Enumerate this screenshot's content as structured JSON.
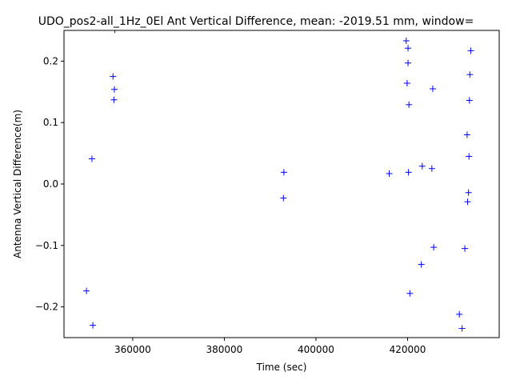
{
  "chart_data": {
    "type": "scatter",
    "title": "UDO_pos2-all_1Hz_0El Ant Vertical Difference, mean: -2019.51 mm, window=",
    "xlabel": "Time (sec)",
    "ylabel": "Antenna Vertical Difference(m)",
    "xlim": [
      345000,
      440000
    ],
    "ylim": [
      -0.25,
      0.25
    ],
    "xticks": [
      360000,
      380000,
      400000,
      420000
    ],
    "xtick_labels": [
      "360000",
      "380000",
      "400000",
      "420000"
    ],
    "yticks": [
      -0.2,
      -0.1,
      0.0,
      0.1,
      0.2
    ],
    "ytick_labels": [
      "−0.2",
      "−0.1",
      "0.0",
      "0.1",
      "0.2"
    ],
    "marker": "+",
    "color": "#0000ff",
    "grid": false,
    "series": [
      {
        "x": [
          349900,
          351100,
          351300,
          355700,
          355900,
          356000,
          356100,
          393000,
          392900,
          416000,
          419700,
          419900,
          420100,
          420100,
          420200,
          420300,
          420500,
          423000,
          423200,
          425300,
          425500,
          425700,
          431300,
          431900,
          432500,
          433000,
          433100,
          433300,
          433400,
          433500,
          433600
        ],
        "y": [
          -0.174,
          0.041,
          -0.23,
          0.175,
          0.137,
          0.154,
          0.251,
          0.019,
          -0.023,
          0.017,
          0.233,
          0.164,
          0.221,
          0.197,
          0.019,
          0.129,
          -0.178,
          -0.131,
          0.029,
          0.025,
          0.155,
          -0.103,
          -0.212,
          -0.235,
          -0.105,
          0.08,
          -0.029,
          -0.014,
          0.045,
          0.136,
          0.178
        ]
      },
      {
        "x": [
          433800
        ],
        "y": [
          0.217
        ]
      }
    ]
  }
}
